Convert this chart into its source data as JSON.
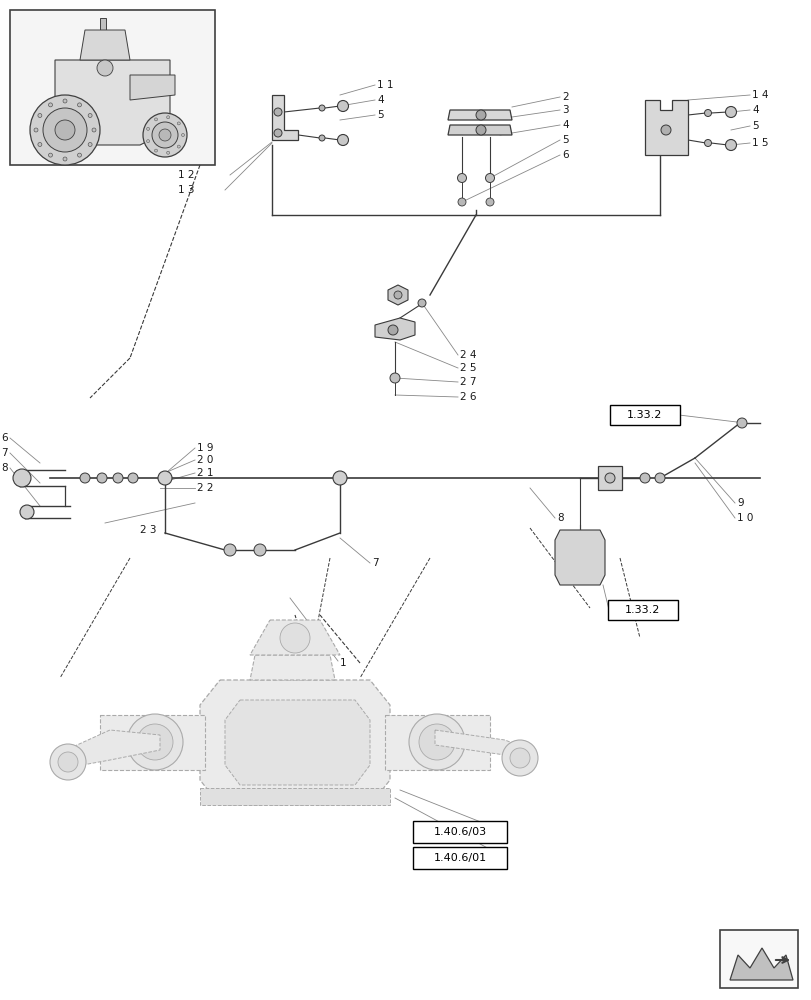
{
  "bg_color": "#ffffff",
  "line_color": "#3a3a3a",
  "leader_color": "#888888",
  "text_color": "#1a1a1a",
  "fig_width": 8.12,
  "fig_height": 10.0,
  "dpi": 100,
  "labels": {
    "ref_1_33_2_top": "1.33.2",
    "ref_1_33_2_bot": "1.33.2",
    "ref_1_40_6_03": "1.40.6/03",
    "ref_1_40_6_01": "1.40.6/01"
  }
}
